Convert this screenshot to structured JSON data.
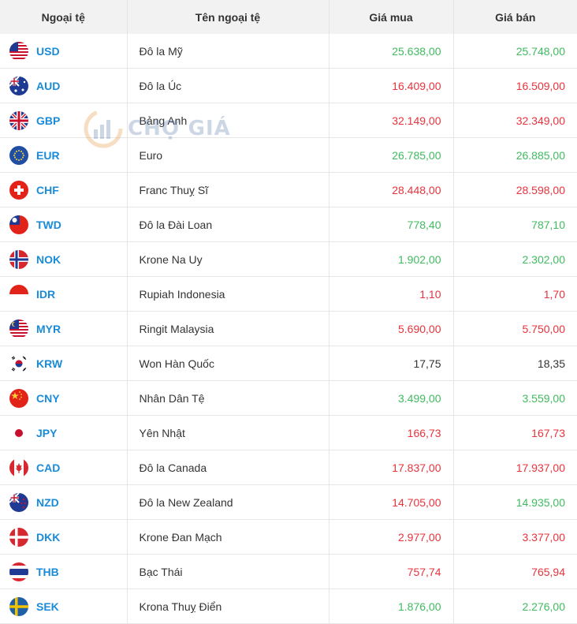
{
  "headers": {
    "code": "Ngoại tệ",
    "name": "Tên ngoại tệ",
    "buy": "Giá mua",
    "sell": "Giá bán"
  },
  "watermark": "CHỢ GIÁ",
  "rows": [
    {
      "flag": "us-flag-icon",
      "code": "USD",
      "name": "Đô la Mỹ",
      "buy": "25.638,00",
      "sell": "25.748,00",
      "buy_color": "#3fbb5f",
      "sell_color": "#3fbb5f"
    },
    {
      "flag": "au-flag-icon",
      "code": "AUD",
      "name": "Đô la Úc",
      "buy": "16.409,00",
      "sell": "16.509,00",
      "buy_color": "#e8333d",
      "sell_color": "#e8333d"
    },
    {
      "flag": "gb-flag-icon",
      "code": "GBP",
      "name": "Bảng Anh",
      "buy": "32.149,00",
      "sell": "32.349,00",
      "buy_color": "#e8333d",
      "sell_color": "#e8333d"
    },
    {
      "flag": "eu-flag-icon",
      "code": "EUR",
      "name": "Euro",
      "buy": "26.785,00",
      "sell": "26.885,00",
      "buy_color": "#3fbb5f",
      "sell_color": "#3fbb5f"
    },
    {
      "flag": "ch-flag-icon",
      "code": "CHF",
      "name": "Franc Thuỵ Sĩ",
      "buy": "28.448,00",
      "sell": "28.598,00",
      "buy_color": "#e8333d",
      "sell_color": "#e8333d"
    },
    {
      "flag": "tw-flag-icon",
      "code": "TWD",
      "name": "Đô la Đài Loan",
      "buy": "778,40",
      "sell": "787,10",
      "buy_color": "#3fbb5f",
      "sell_color": "#3fbb5f"
    },
    {
      "flag": "no-flag-icon",
      "code": "NOK",
      "name": "Krone Na Uy",
      "buy": "1.902,00",
      "sell": "2.302,00",
      "buy_color": "#3fbb5f",
      "sell_color": "#3fbb5f"
    },
    {
      "flag": "id-flag-icon",
      "code": "IDR",
      "name": "Rupiah Indonesia",
      "buy": "1,10",
      "sell": "1,70",
      "buy_color": "#e8333d",
      "sell_color": "#e8333d"
    },
    {
      "flag": "my-flag-icon",
      "code": "MYR",
      "name": "Ringit Malaysia",
      "buy": "5.690,00",
      "sell": "5.750,00",
      "buy_color": "#e8333d",
      "sell_color": "#e8333d"
    },
    {
      "flag": "kr-flag-icon",
      "code": "KRW",
      "name": "Won Hàn Quốc",
      "buy": "17,75",
      "sell": "18,35",
      "buy_color": "#333333",
      "sell_color": "#333333"
    },
    {
      "flag": "cn-flag-icon",
      "code": "CNY",
      "name": "Nhân Dân Tệ",
      "buy": "3.499,00",
      "sell": "3.559,00",
      "buy_color": "#3fbb5f",
      "sell_color": "#3fbb5f"
    },
    {
      "flag": "jp-flag-icon",
      "code": "JPY",
      "name": "Yên Nhật",
      "buy": "166,73",
      "sell": "167,73",
      "buy_color": "#e8333d",
      "sell_color": "#e8333d"
    },
    {
      "flag": "ca-flag-icon",
      "code": "CAD",
      "name": "Đô la Canada",
      "buy": "17.837,00",
      "sell": "17.937,00",
      "buy_color": "#e8333d",
      "sell_color": "#e8333d"
    },
    {
      "flag": "nz-flag-icon",
      "code": "NZD",
      "name": "Đô la New Zealand",
      "buy": "14.705,00",
      "sell": "14.935,00",
      "buy_color": "#e8333d",
      "sell_color": "#3fbb5f"
    },
    {
      "flag": "dk-flag-icon",
      "code": "DKK",
      "name": "Krone Đan Mạch",
      "buy": "2.977,00",
      "sell": "3.377,00",
      "buy_color": "#e8333d",
      "sell_color": "#e8333d"
    },
    {
      "flag": "th-flag-icon",
      "code": "THB",
      "name": "Bạc Thái",
      "buy": "757,74",
      "sell": "765,94",
      "buy_color": "#e8333d",
      "sell_color": "#e8333d"
    },
    {
      "flag": "se-flag-icon",
      "code": "SEK",
      "name": "Krona Thuỵ Điển",
      "buy": "1.876,00",
      "sell": "2.276,00",
      "buy_color": "#3fbb5f",
      "sell_color": "#3fbb5f"
    }
  ]
}
